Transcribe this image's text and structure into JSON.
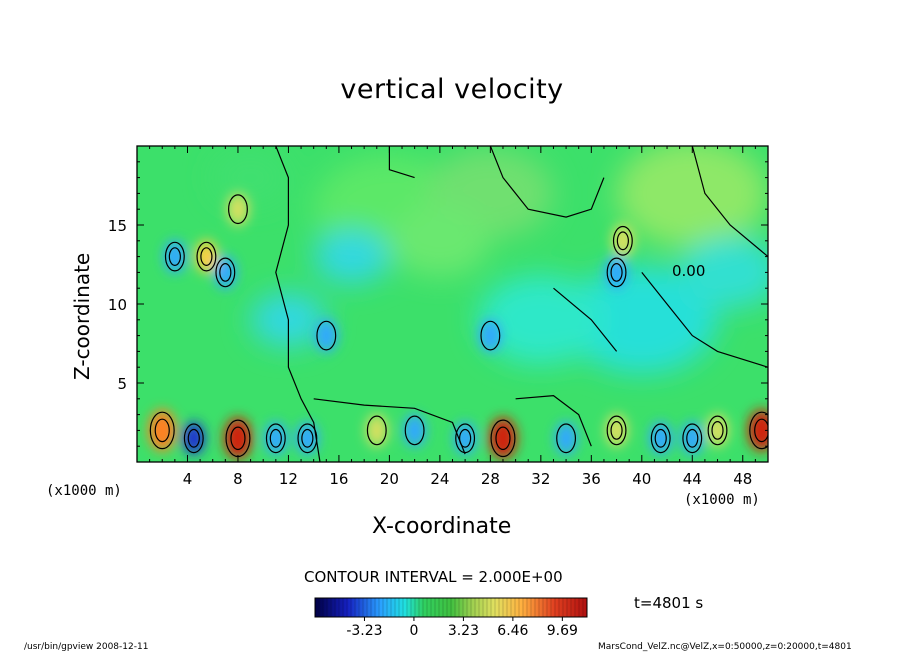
{
  "chart_data": {
    "type": "heatmap",
    "title": "vertical velocity",
    "xlabel": "X-coordinate",
    "ylabel": "Z-coordinate",
    "x_unit": "(x1000 m)",
    "x_ticks": [
      4,
      8,
      12,
      16,
      20,
      24,
      28,
      32,
      36,
      40,
      44,
      48
    ],
    "y_ticks": [
      5,
      10,
      15
    ],
    "xlim": [
      0,
      50
    ],
    "ylim": [
      0,
      20
    ],
    "contour_interval": "CONTOUR INTERVAL = 2.000E+00",
    "contour_label": "0.00",
    "colorbar": {
      "ticks": [
        "-3.23",
        "0",
        "3.23",
        "6.46",
        "9.69"
      ],
      "tick_values": [
        -3.23,
        0,
        3.23,
        6.46,
        9.69
      ],
      "range": [
        -6.46,
        11.3
      ]
    },
    "time": "t=4801 s",
    "footer_left": "/usr/bin/gpview   2008-12-11",
    "footer_right": "MarsCond_VelZ.nc@VelZ,x=0:50000,z=0:20000,t=4801",
    "features": [
      {
        "x": 2,
        "z": 2,
        "value": 8
      },
      {
        "x": 8,
        "z": 1.5,
        "value": 9.5
      },
      {
        "x": 29,
        "z": 1.5,
        "value": 9
      },
      {
        "x": 49.5,
        "z": 2,
        "value": 9
      },
      {
        "x": 46,
        "z": 2,
        "value": 4
      },
      {
        "x": 38,
        "z": 2,
        "value": 4
      },
      {
        "x": 19,
        "z": 2,
        "value": 3
      },
      {
        "x": 4.5,
        "z": 1.5,
        "value": -5
      },
      {
        "x": 11,
        "z": 1.5,
        "value": -4
      },
      {
        "x": 13.5,
        "z": 1.5,
        "value": -4
      },
      {
        "x": 22,
        "z": 2,
        "value": -3
      },
      {
        "x": 26,
        "z": 1.5,
        "value": -4
      },
      {
        "x": 34,
        "z": 1.5,
        "value": -3
      },
      {
        "x": 41.5,
        "z": 1.5,
        "value": -4
      },
      {
        "x": 44,
        "z": 1.5,
        "value": -4
      },
      {
        "x": 5.5,
        "z": 13,
        "value": 6
      },
      {
        "x": 3,
        "z": 13,
        "value": -4
      },
      {
        "x": 7,
        "z": 12,
        "value": -4
      },
      {
        "x": 38,
        "z": 12,
        "value": -4
      },
      {
        "x": 38.5,
        "z": 14,
        "value": 4
      },
      {
        "x": 15,
        "z": 8,
        "value": -3
      },
      {
        "x": 28,
        "z": 8,
        "value": -3
      },
      {
        "x": 8,
        "z": 16,
        "value": 3
      }
    ]
  }
}
